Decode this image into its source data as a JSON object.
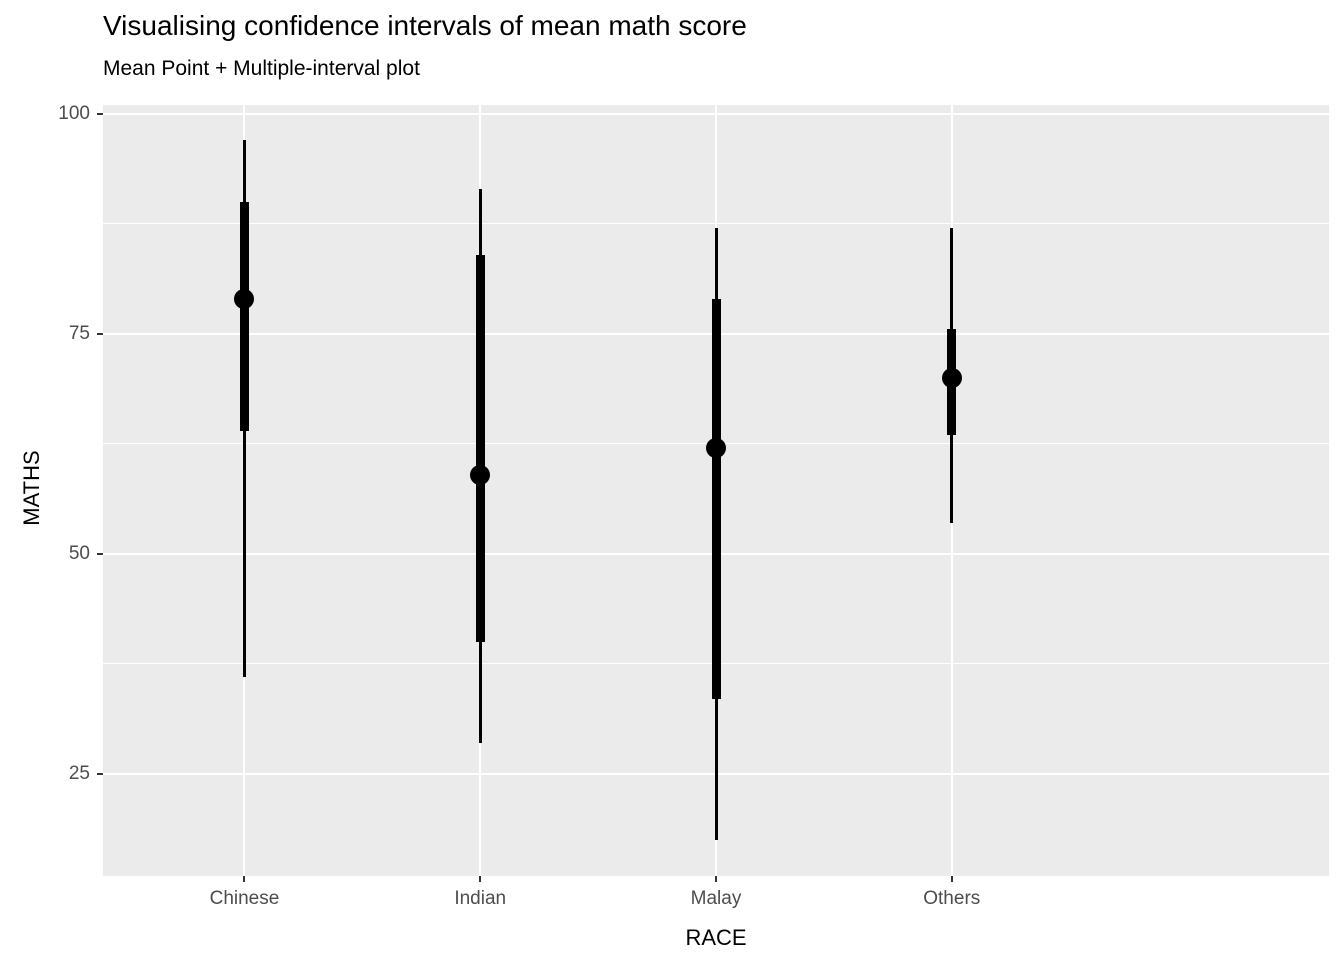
{
  "title": "Visualising confidence intervals of mean math score",
  "subtitle": "Mean Point + Multiple-interval plot",
  "x_axis": {
    "label": "RACE",
    "categories": [
      "Chinese",
      "Indian",
      "Malay",
      "Others"
    ]
  },
  "y_axis": {
    "label": "MATHS",
    "ticks": [
      25,
      50,
      75,
      100
    ]
  },
  "colors": {
    "panel_background": "#EBEBEB",
    "gridline": "#FFFFFF",
    "point_and_interval": "#000000",
    "tick_label_text": "#4D4D4D",
    "axis_tick_mark": "#333333",
    "title_text": "#000000"
  },
  "chart_data": {
    "type": "pointinterval",
    "title": "Visualising confidence intervals of mean math score",
    "subtitle": "Mean Point + Multiple-interval plot",
    "xlabel": "RACE",
    "ylabel": "MATHS",
    "categories": [
      "Chinese",
      "Indian",
      "Malay",
      "Others"
    ],
    "points": [
      {
        "category": "Chinese",
        "mean": 79,
        "inner_interval": [
          64,
          90
        ],
        "outer_interval": [
          36,
          97
        ]
      },
      {
        "category": "Indian",
        "mean": 59,
        "inner_interval": [
          40,
          84
        ],
        "outer_interval": [
          28.5,
          91.5
        ]
      },
      {
        "category": "Malay",
        "mean": 62,
        "inner_interval": [
          33.5,
          79
        ],
        "outer_interval": [
          17.5,
          87
        ]
      },
      {
        "category": "Others",
        "mean": 70,
        "inner_interval": [
          63.5,
          75.5
        ],
        "outer_interval": [
          53.5,
          87
        ]
      }
    ],
    "yticks": [
      25,
      50,
      75,
      100
    ],
    "ylim": [
      13.4,
      101
    ],
    "minor_gridlines": [
      37.5,
      62.5,
      87.5
    ],
    "grid": true,
    "legend": false,
    "panel_theme": "ggplot-grey"
  }
}
